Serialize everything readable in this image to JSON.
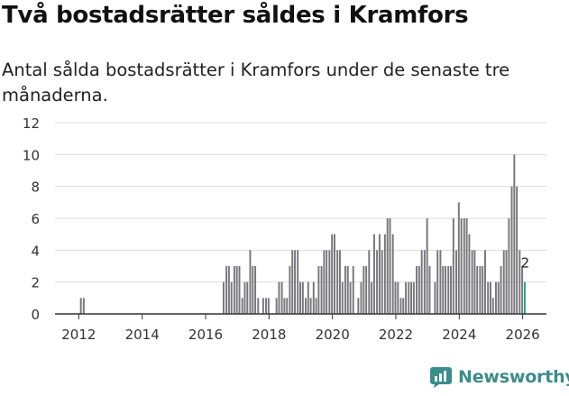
{
  "title": "Två bostadsrätter såldes i Kramfors",
  "subtitle": "Antal sålda bostadsrätter i Kramfors under de senaste tre månaderna.",
  "logo_text": "Newsworthy",
  "colors": {
    "bar": "#77767b",
    "highlight": "#2a9d8f",
    "grid": "#dddddd",
    "axis": "#333333",
    "brand": "#3c8c8a"
  },
  "chart_data": {
    "type": "bar",
    "title": "Två bostadsrätter såldes i Kramfors",
    "xlabel": "",
    "ylabel": "",
    "ylim": [
      0,
      12
    ],
    "y_ticks": [
      "0",
      "2",
      "4",
      "6",
      "8",
      "10",
      "12"
    ],
    "x_ticks": [
      {
        "label": "2012",
        "x": 2012
      },
      {
        "label": "2014",
        "x": 2014
      },
      {
        "label": "2016",
        "x": 2016
      },
      {
        "label": "2018",
        "x": 2018
      },
      {
        "label": "2020",
        "x": 2020
      },
      {
        "label": "2022",
        "x": 2022
      },
      {
        "label": "2024",
        "x": 2024
      },
      {
        "label": "2026",
        "x": 2026
      }
    ],
    "x_range": [
      2011.25,
      2026.75
    ],
    "bar_width_years": 0.0833,
    "series": [
      {
        "name": "Sålda bostadsrätter",
        "points": [
          {
            "x": 2012.08,
            "y": 1
          },
          {
            "x": 2012.17,
            "y": 1
          },
          {
            "x": 2016.58,
            "y": 2
          },
          {
            "x": 2016.67,
            "y": 3
          },
          {
            "x": 2016.75,
            "y": 3
          },
          {
            "x": 2016.83,
            "y": 2
          },
          {
            "x": 2016.92,
            "y": 3
          },
          {
            "x": 2017.0,
            "y": 3
          },
          {
            "x": 2017.08,
            "y": 3
          },
          {
            "x": 2017.17,
            "y": 1
          },
          {
            "x": 2017.25,
            "y": 2
          },
          {
            "x": 2017.33,
            "y": 2
          },
          {
            "x": 2017.42,
            "y": 4
          },
          {
            "x": 2017.5,
            "y": 3
          },
          {
            "x": 2017.58,
            "y": 3
          },
          {
            "x": 2017.67,
            "y": 1
          },
          {
            "x": 2017.83,
            "y": 1
          },
          {
            "x": 2017.92,
            "y": 1
          },
          {
            "x": 2018.0,
            "y": 1
          },
          {
            "x": 2018.25,
            "y": 1
          },
          {
            "x": 2018.33,
            "y": 2
          },
          {
            "x": 2018.42,
            "y": 2
          },
          {
            "x": 2018.5,
            "y": 1
          },
          {
            "x": 2018.58,
            "y": 1
          },
          {
            "x": 2018.67,
            "y": 3
          },
          {
            "x": 2018.75,
            "y": 4
          },
          {
            "x": 2018.83,
            "y": 4
          },
          {
            "x": 2018.92,
            "y": 4
          },
          {
            "x": 2019.0,
            "y": 2
          },
          {
            "x": 2019.08,
            "y": 2
          },
          {
            "x": 2019.17,
            "y": 1
          },
          {
            "x": 2019.25,
            "y": 2
          },
          {
            "x": 2019.33,
            "y": 1
          },
          {
            "x": 2019.42,
            "y": 2
          },
          {
            "x": 2019.5,
            "y": 1
          },
          {
            "x": 2019.58,
            "y": 3
          },
          {
            "x": 2019.67,
            "y": 3
          },
          {
            "x": 2019.75,
            "y": 4
          },
          {
            "x": 2019.83,
            "y": 4
          },
          {
            "x": 2019.92,
            "y": 4
          },
          {
            "x": 2020.0,
            "y": 5
          },
          {
            "x": 2020.08,
            "y": 5
          },
          {
            "x": 2020.17,
            "y": 4
          },
          {
            "x": 2020.25,
            "y": 4
          },
          {
            "x": 2020.33,
            "y": 2
          },
          {
            "x": 2020.42,
            "y": 3
          },
          {
            "x": 2020.5,
            "y": 3
          },
          {
            "x": 2020.58,
            "y": 2
          },
          {
            "x": 2020.67,
            "y": 3
          },
          {
            "x": 2020.83,
            "y": 1
          },
          {
            "x": 2020.92,
            "y": 2
          },
          {
            "x": 2021.0,
            "y": 3
          },
          {
            "x": 2021.08,
            "y": 3
          },
          {
            "x": 2021.17,
            "y": 4
          },
          {
            "x": 2021.25,
            "y": 2
          },
          {
            "x": 2021.33,
            "y": 5
          },
          {
            "x": 2021.42,
            "y": 4
          },
          {
            "x": 2021.5,
            "y": 5
          },
          {
            "x": 2021.58,
            "y": 4
          },
          {
            "x": 2021.67,
            "y": 5
          },
          {
            "x": 2021.75,
            "y": 6
          },
          {
            "x": 2021.83,
            "y": 6
          },
          {
            "x": 2021.92,
            "y": 5
          },
          {
            "x": 2022.0,
            "y": 2
          },
          {
            "x": 2022.08,
            "y": 2
          },
          {
            "x": 2022.17,
            "y": 1
          },
          {
            "x": 2022.25,
            "y": 1
          },
          {
            "x": 2022.33,
            "y": 2
          },
          {
            "x": 2022.42,
            "y": 2
          },
          {
            "x": 2022.5,
            "y": 2
          },
          {
            "x": 2022.58,
            "y": 2
          },
          {
            "x": 2022.67,
            "y": 3
          },
          {
            "x": 2022.75,
            "y": 3
          },
          {
            "x": 2022.83,
            "y": 4
          },
          {
            "x": 2022.92,
            "y": 4
          },
          {
            "x": 2023.0,
            "y": 6
          },
          {
            "x": 2023.08,
            "y": 3
          },
          {
            "x": 2023.25,
            "y": 2
          },
          {
            "x": 2023.33,
            "y": 4
          },
          {
            "x": 2023.42,
            "y": 4
          },
          {
            "x": 2023.5,
            "y": 3
          },
          {
            "x": 2023.58,
            "y": 3
          },
          {
            "x": 2023.67,
            "y": 3
          },
          {
            "x": 2023.75,
            "y": 3
          },
          {
            "x": 2023.83,
            "y": 6
          },
          {
            "x": 2023.92,
            "y": 4
          },
          {
            "x": 2024.0,
            "y": 7
          },
          {
            "x": 2024.08,
            "y": 6
          },
          {
            "x": 2024.17,
            "y": 6
          },
          {
            "x": 2024.25,
            "y": 6
          },
          {
            "x": 2024.33,
            "y": 5
          },
          {
            "x": 2024.42,
            "y": 4
          },
          {
            "x": 2024.5,
            "y": 4
          },
          {
            "x": 2024.58,
            "y": 3
          },
          {
            "x": 2024.67,
            "y": 3
          },
          {
            "x": 2024.75,
            "y": 3
          },
          {
            "x": 2024.83,
            "y": 4
          },
          {
            "x": 2024.92,
            "y": 2
          },
          {
            "x": 2025.0,
            "y": 2
          },
          {
            "x": 2025.08,
            "y": 1
          },
          {
            "x": 2025.17,
            "y": 2
          },
          {
            "x": 2025.25,
            "y": 2
          },
          {
            "x": 2025.33,
            "y": 3
          },
          {
            "x": 2025.42,
            "y": 4
          },
          {
            "x": 2025.5,
            "y": 4
          },
          {
            "x": 2025.58,
            "y": 6
          },
          {
            "x": 2025.67,
            "y": 8
          },
          {
            "x": 2025.75,
            "y": 10
          },
          {
            "x": 2025.83,
            "y": 8
          },
          {
            "x": 2025.92,
            "y": 4
          },
          {
            "x": 2026.0,
            "y": 3
          },
          {
            "x": 2026.08,
            "y": 2,
            "highlight": true
          }
        ]
      }
    ],
    "annotation": {
      "x": 2026.08,
      "label": "2"
    }
  }
}
